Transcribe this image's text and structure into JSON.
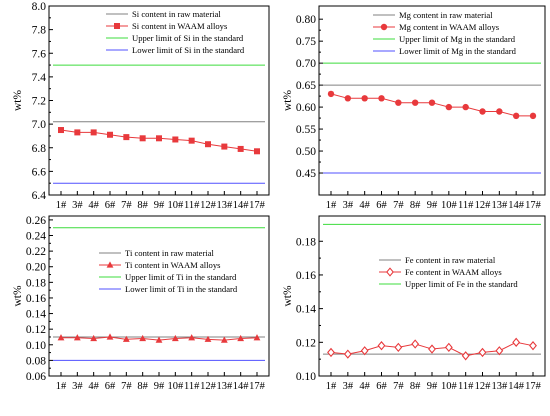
{
  "chart_data": [
    {
      "type": "line",
      "ylabel": "wt%",
      "ylim": [
        6.4,
        8.0
      ],
      "yticks": [
        6.4,
        6.6,
        6.8,
        7.0,
        7.2,
        7.4,
        7.6,
        7.8,
        8.0
      ],
      "ytick_labels": [
        "6.4",
        "6.6",
        "6.8",
        "7.0",
        "7.2",
        "7.4",
        "7.6",
        "7.8",
        "8.0"
      ],
      "categories": [
        "1#",
        "3#",
        "4#",
        "6#",
        "7#",
        "8#",
        "9#",
        "10#",
        "11#",
        "12#",
        "13#",
        "14#",
        "17#"
      ],
      "legend_position": "top-right",
      "series": [
        {
          "name": "Si content in raw material",
          "kind": "reference",
          "value": 7.02,
          "color": "#808080"
        },
        {
          "name": "Si content in WAAM alloys",
          "kind": "series",
          "marker": "square",
          "color": "#e8393c",
          "values": [
            6.95,
            6.93,
            6.93,
            6.91,
            6.89,
            6.88,
            6.88,
            6.87,
            6.86,
            6.83,
            6.81,
            6.79,
            6.77
          ]
        },
        {
          "name": "Upper limit of Si in the standard",
          "kind": "reference",
          "value": 7.5,
          "color": "#3cdc3c"
        },
        {
          "name": "Lower limit of Si in the standard",
          "kind": "reference",
          "value": 6.5,
          "color": "#5050ff"
        }
      ]
    },
    {
      "type": "line",
      "ylabel": "wt%",
      "ylim": [
        0.4,
        0.83
      ],
      "yticks": [
        0.45,
        0.5,
        0.55,
        0.6,
        0.65,
        0.7,
        0.75,
        0.8
      ],
      "ytick_labels": [
        "0.45",
        "0.50",
        "0.55",
        "0.60",
        "0.65",
        "0.70",
        "0.75",
        "0.80"
      ],
      "categories": [
        "1#",
        "3#",
        "4#",
        "6#",
        "7#",
        "8#",
        "9#",
        "10#",
        "11#",
        "12#",
        "13#",
        "14#",
        "17#"
      ],
      "legend_position": "top-right",
      "series": [
        {
          "name": "Mg content in raw material",
          "kind": "reference",
          "value": 0.65,
          "color": "#808080"
        },
        {
          "name": "Mg content in WAAM alloys",
          "kind": "series",
          "marker": "circle",
          "color": "#e8393c",
          "values": [
            0.63,
            0.62,
            0.62,
            0.62,
            0.61,
            0.61,
            0.61,
            0.6,
            0.6,
            0.59,
            0.59,
            0.58,
            0.58
          ]
        },
        {
          "name": "Upper limit of Mg in the standard",
          "kind": "reference",
          "value": 0.7,
          "color": "#3cdc3c"
        },
        {
          "name": "Lower limit of Mg in the standard",
          "kind": "reference",
          "value": 0.45,
          "color": "#5050ff"
        }
      ]
    },
    {
      "type": "line",
      "ylabel": "wt%",
      "ylim": [
        0.06,
        0.265
      ],
      "yticks": [
        0.06,
        0.08,
        0.1,
        0.12,
        0.14,
        0.16,
        0.18,
        0.2,
        0.22,
        0.24,
        0.26
      ],
      "ytick_labels": [
        "0.06",
        "0.08",
        "0.10",
        "0.12",
        "0.14",
        "0.16",
        "0.18",
        "0.20",
        "0.22",
        "0.24",
        "0.26"
      ],
      "categories": [
        "1#",
        "3#",
        "4#",
        "6#",
        "7#",
        "8#",
        "9#",
        "10#",
        "11#",
        "12#",
        "13#",
        "14#",
        "17#"
      ],
      "legend_position": "center-right",
      "series": [
        {
          "name": "Ti content in raw material",
          "kind": "reference",
          "value": 0.11,
          "color": "#808080"
        },
        {
          "name": "Ti content in WAAM alloys",
          "kind": "series",
          "marker": "triangle",
          "color": "#e8393c",
          "values": [
            0.109,
            0.109,
            0.108,
            0.11,
            0.107,
            0.108,
            0.106,
            0.108,
            0.109,
            0.107,
            0.106,
            0.108,
            0.109
          ]
        },
        {
          "name": "Upper limit of Ti in the standard",
          "kind": "reference",
          "value": 0.25,
          "color": "#3cdc3c"
        },
        {
          "name": "Lower limit of Ti in the standard",
          "kind": "reference",
          "value": 0.08,
          "color": "#5050ff"
        }
      ]
    },
    {
      "type": "line",
      "ylabel": "wt%",
      "ylim": [
        0.1,
        0.195
      ],
      "yticks": [
        0.1,
        0.12,
        0.14,
        0.16,
        0.18
      ],
      "ytick_labels": [
        "0.10",
        "0.12",
        "0.14",
        "0.16",
        "0.18"
      ],
      "categories": [
        "1#",
        "3#",
        "4#",
        "6#",
        "7#",
        "8#",
        "9#",
        "10#",
        "11#",
        "12#",
        "13#",
        "14#",
        "17#"
      ],
      "legend_position": "top-right",
      "series": [
        {
          "name": "Fe content in raw material",
          "kind": "reference",
          "value": 0.113,
          "color": "#808080"
        },
        {
          "name": "Fe content in WAAM alloys",
          "kind": "series",
          "marker": "diamond",
          "color": "#e8393c",
          "values": [
            0.114,
            0.113,
            0.115,
            0.118,
            0.117,
            0.119,
            0.116,
            0.117,
            0.112,
            0.114,
            0.115,
            0.12,
            0.118
          ]
        },
        {
          "name": "Upper limit of Fe in the standard",
          "kind": "reference",
          "value": 0.19,
          "color": "#3cdc3c"
        }
      ]
    }
  ]
}
